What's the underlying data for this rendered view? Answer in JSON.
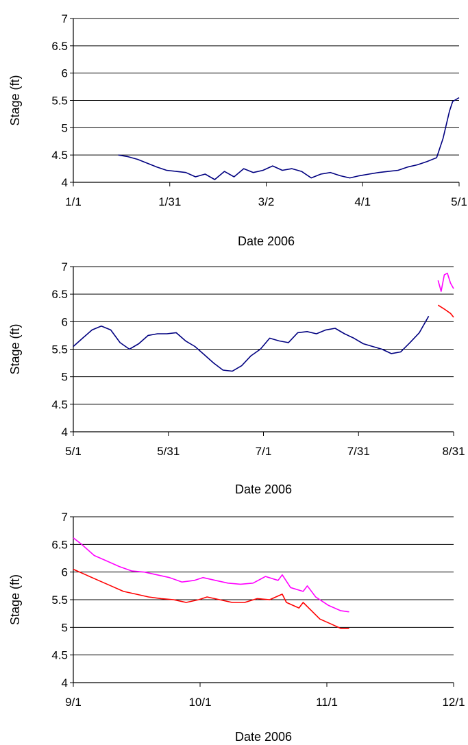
{
  "chart_data": [
    {
      "type": "line",
      "xlabel": "Date 2006",
      "ylabel": "Stage (ft)",
      "ylim": [
        4,
        7
      ],
      "yticks": [
        "4",
        "4.5",
        "5",
        "5.5",
        "6",
        "6.5",
        "7"
      ],
      "xticks": [
        "1/1",
        "1/31",
        "3/2",
        "4/1",
        "5/1"
      ],
      "xlim": [
        "2006-01-01",
        "2006-05-01"
      ],
      "grid": "horizontal",
      "legend": "none",
      "series": [
        {
          "color": "#000080",
          "points": [
            [
              "2006-01-15",
              4.5
            ],
            [
              "2006-01-18",
              4.47
            ],
            [
              "2006-01-21",
              4.42
            ],
            [
              "2006-01-24",
              4.35
            ],
            [
              "2006-01-27",
              4.28
            ],
            [
              "2006-01-30",
              4.22
            ],
            [
              "2006-02-02",
              4.2
            ],
            [
              "2006-02-05",
              4.18
            ],
            [
              "2006-02-08",
              4.1
            ],
            [
              "2006-02-11",
              4.15
            ],
            [
              "2006-02-14",
              4.05
            ],
            [
              "2006-02-17",
              4.2
            ],
            [
              "2006-02-20",
              4.1
            ],
            [
              "2006-02-23",
              4.25
            ],
            [
              "2006-02-26",
              4.18
            ],
            [
              "2006-03-01",
              4.22
            ],
            [
              "2006-03-04",
              4.3
            ],
            [
              "2006-03-07",
              4.22
            ],
            [
              "2006-03-10",
              4.25
            ],
            [
              "2006-03-13",
              4.2
            ],
            [
              "2006-03-16",
              4.08
            ],
            [
              "2006-03-19",
              4.15
            ],
            [
              "2006-03-22",
              4.18
            ],
            [
              "2006-03-25",
              4.12
            ],
            [
              "2006-03-28",
              4.08
            ],
            [
              "2006-03-31",
              4.12
            ],
            [
              "2006-04-03",
              4.15
            ],
            [
              "2006-04-06",
              4.18
            ],
            [
              "2006-04-09",
              4.2
            ],
            [
              "2006-04-12",
              4.22
            ],
            [
              "2006-04-15",
              4.28
            ],
            [
              "2006-04-18",
              4.32
            ],
            [
              "2006-04-21",
              4.38
            ],
            [
              "2006-04-24",
              4.45
            ],
            [
              "2006-04-26",
              4.8
            ],
            [
              "2006-04-28",
              5.3
            ],
            [
              "2006-04-29",
              5.48
            ],
            [
              "2006-05-01",
              5.55
            ]
          ]
        }
      ]
    },
    {
      "type": "line",
      "xlabel": "Date 2006",
      "ylabel": "Stage (ft)",
      "ylim": [
        4,
        7
      ],
      "yticks": [
        "4",
        "4.5",
        "5",
        "5.5",
        "6",
        "6.5",
        "7"
      ],
      "xticks": [
        "5/1",
        "5/31",
        "7/1",
        "7/31",
        "8/31"
      ],
      "xlim": [
        "2006-05-01",
        "2006-08-31"
      ],
      "grid": "horizontal",
      "legend": "none",
      "series": [
        {
          "color": "#000080",
          "points": [
            [
              "2006-05-01",
              5.55
            ],
            [
              "2006-05-04",
              5.7
            ],
            [
              "2006-05-07",
              5.85
            ],
            [
              "2006-05-10",
              5.92
            ],
            [
              "2006-05-13",
              5.85
            ],
            [
              "2006-05-16",
              5.62
            ],
            [
              "2006-05-19",
              5.5
            ],
            [
              "2006-05-22",
              5.6
            ],
            [
              "2006-05-25",
              5.75
            ],
            [
              "2006-05-28",
              5.78
            ],
            [
              "2006-05-31",
              5.78
            ],
            [
              "2006-06-03",
              5.8
            ],
            [
              "2006-06-06",
              5.65
            ],
            [
              "2006-06-09",
              5.55
            ],
            [
              "2006-06-12",
              5.4
            ],
            [
              "2006-06-15",
              5.25
            ],
            [
              "2006-06-18",
              5.12
            ],
            [
              "2006-06-21",
              5.1
            ],
            [
              "2006-06-24",
              5.2
            ],
            [
              "2006-06-27",
              5.38
            ],
            [
              "2006-06-30",
              5.5
            ],
            [
              "2006-07-03",
              5.7
            ],
            [
              "2006-07-06",
              5.65
            ],
            [
              "2006-07-09",
              5.62
            ],
            [
              "2006-07-12",
              5.8
            ],
            [
              "2006-07-15",
              5.82
            ],
            [
              "2006-07-18",
              5.78
            ],
            [
              "2006-07-21",
              5.85
            ],
            [
              "2006-07-24",
              5.88
            ],
            [
              "2006-07-27",
              5.78
            ],
            [
              "2006-07-30",
              5.7
            ],
            [
              "2006-08-02",
              5.6
            ],
            [
              "2006-08-05",
              5.55
            ],
            [
              "2006-08-08",
              5.5
            ],
            [
              "2006-08-11",
              5.42
            ],
            [
              "2006-08-14",
              5.45
            ],
            [
              "2006-08-17",
              5.62
            ],
            [
              "2006-08-20",
              5.8
            ],
            [
              "2006-08-23",
              6.1
            ]
          ]
        },
        {
          "color": "#ff00ff",
          "points": [
            [
              "2006-08-26",
              6.75
            ],
            [
              "2006-08-27",
              6.55
            ],
            [
              "2006-08-28",
              6.85
            ],
            [
              "2006-08-29",
              6.88
            ],
            [
              "2006-08-30",
              6.7
            ],
            [
              "2006-08-31",
              6.6
            ]
          ]
        },
        {
          "color": "#ff0000",
          "points": [
            [
              "2006-08-26",
              6.3
            ],
            [
              "2006-08-28",
              6.23
            ],
            [
              "2006-08-30",
              6.15
            ],
            [
              "2006-08-31",
              6.08
            ]
          ]
        }
      ]
    },
    {
      "type": "line",
      "xlabel": "Date 2006",
      "ylabel": "Stage (ft)",
      "ylim": [
        4,
        7
      ],
      "yticks": [
        "4",
        "4.5",
        "5",
        "5.5",
        "6",
        "6.5",
        "7"
      ],
      "xticks": [
        "9/1",
        "10/1",
        "11/1",
        "12/1"
      ],
      "xlim": [
        "2006-09-01",
        "2006-12-01"
      ],
      "grid": "horizontal",
      "legend": "none",
      "series": [
        {
          "color": "#ff00ff",
          "points": [
            [
              "2006-09-01",
              6.62
            ],
            [
              "2006-09-03",
              6.5
            ],
            [
              "2006-09-06",
              6.3
            ],
            [
              "2006-09-09",
              6.2
            ],
            [
              "2006-09-12",
              6.1
            ],
            [
              "2006-09-15",
              6.02
            ],
            [
              "2006-09-18",
              6.0
            ],
            [
              "2006-09-21",
              5.95
            ],
            [
              "2006-09-24",
              5.9
            ],
            [
              "2006-09-27",
              5.82
            ],
            [
              "2006-09-30",
              5.85
            ],
            [
              "2006-10-02",
              5.9
            ],
            [
              "2006-10-05",
              5.85
            ],
            [
              "2006-10-08",
              5.8
            ],
            [
              "2006-10-11",
              5.78
            ],
            [
              "2006-10-14",
              5.8
            ],
            [
              "2006-10-17",
              5.92
            ],
            [
              "2006-10-20",
              5.85
            ],
            [
              "2006-10-21",
              5.95
            ],
            [
              "2006-10-23",
              5.72
            ],
            [
              "2006-10-26",
              5.65
            ],
            [
              "2006-10-27",
              5.75
            ],
            [
              "2006-10-29",
              5.55
            ],
            [
              "2006-11-01",
              5.4
            ],
            [
              "2006-11-04",
              5.3
            ],
            [
              "2006-11-06",
              5.28
            ]
          ]
        },
        {
          "color": "#ff0000",
          "points": [
            [
              "2006-09-01",
              6.05
            ],
            [
              "2006-09-04",
              5.95
            ],
            [
              "2006-09-07",
              5.85
            ],
            [
              "2006-09-10",
              5.75
            ],
            [
              "2006-09-13",
              5.65
            ],
            [
              "2006-09-16",
              5.6
            ],
            [
              "2006-09-19",
              5.55
            ],
            [
              "2006-09-22",
              5.52
            ],
            [
              "2006-09-25",
              5.5
            ],
            [
              "2006-09-28",
              5.45
            ],
            [
              "2006-10-01",
              5.5
            ],
            [
              "2006-10-03",
              5.55
            ],
            [
              "2006-10-06",
              5.5
            ],
            [
              "2006-10-09",
              5.45
            ],
            [
              "2006-10-12",
              5.45
            ],
            [
              "2006-10-15",
              5.52
            ],
            [
              "2006-10-18",
              5.5
            ],
            [
              "2006-10-21",
              5.6
            ],
            [
              "2006-10-22",
              5.45
            ],
            [
              "2006-10-25",
              5.35
            ],
            [
              "2006-10-26",
              5.45
            ],
            [
              "2006-10-28",
              5.3
            ],
            [
              "2006-10-30",
              5.15
            ],
            [
              "2006-11-02",
              5.05
            ],
            [
              "2006-11-04",
              4.98
            ],
            [
              "2006-11-06",
              4.98
            ]
          ]
        }
      ]
    }
  ]
}
